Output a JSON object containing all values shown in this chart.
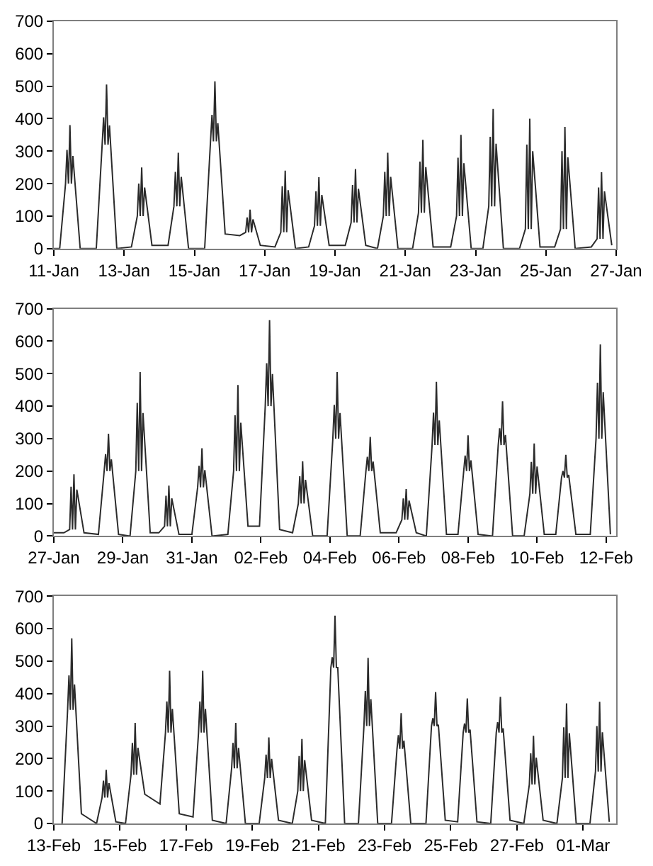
{
  "chart_data": [
    {
      "type": "line",
      "color": "#2b2b2b",
      "line_style": "solid",
      "marker": "none",
      "xlim": [
        "--01-11",
        "--01-27"
      ],
      "xticks": [
        {
          "value": "--01-11",
          "label": "11-Jan"
        },
        {
          "value": "--01-13",
          "label": "13-Jan"
        },
        {
          "value": "--01-15",
          "label": "15-Jan"
        },
        {
          "value": "--01-17",
          "label": "17-Jan"
        },
        {
          "value": "--01-19",
          "label": "19-Jan"
        },
        {
          "value": "--01-21",
          "label": "21-Jan"
        },
        {
          "value": "--01-23",
          "label": "23-Jan"
        },
        {
          "value": "--01-25",
          "label": "25-Jan"
        },
        {
          "value": "--01-27",
          "label": "27-Jan"
        }
      ],
      "ylim": [
        0,
        700
      ],
      "yticks": [
        0,
        100,
        200,
        300,
        400,
        500,
        600,
        700
      ],
      "x": [
        "--01-11T00:00",
        "--01-11T04:00",
        "--01-11T08:00",
        "--01-11T09:00",
        "--01-11T10:00",
        "--01-11T11:00",
        "--01-11T12:00",
        "--01-11T13:00",
        "--01-11T18:00",
        "--01-12T05:00",
        "--01-12T09:00",
        "--01-12T10:00",
        "--01-12T11:00",
        "--01-12T12:00",
        "--01-12T13:00",
        "--01-12T14:00",
        "--01-12T19:00",
        "--01-13T05:00",
        "--01-13T09:00",
        "--01-13T10:00",
        "--01-13T11:00",
        "--01-13T12:00",
        "--01-13T13:00",
        "--01-13T14:00",
        "--01-13T19:00",
        "--01-14T06:00",
        "--01-14T10:00",
        "--01-14T11:00",
        "--01-14T12:00",
        "--01-14T13:00",
        "--01-14T14:00",
        "--01-14T15:00",
        "--01-14T20:00",
        "--01-15T07:00",
        "--01-15T11:00",
        "--01-15T12:00",
        "--01-15T13:00",
        "--01-15T14:00",
        "--01-15T15:00",
        "--01-15T16:00",
        "--01-15T21:00",
        "--01-16T07:00",
        "--01-16T11:00",
        "--01-16T12:00",
        "--01-16T13:00",
        "--01-16T14:00",
        "--01-16T15:00",
        "--01-16T16:00",
        "--01-16T21:00",
        "--01-17T07:00",
        "--01-17T11:00",
        "--01-17T12:00",
        "--01-17T13:00",
        "--01-17T14:00",
        "--01-17T15:00",
        "--01-17T16:00",
        "--01-17T21:00",
        "--01-18T06:00",
        "--01-18T10:00",
        "--01-18T11:00",
        "--01-18T12:00",
        "--01-18T13:00",
        "--01-18T14:00",
        "--01-18T15:00",
        "--01-18T20:00",
        "--01-19T07:00",
        "--01-19T11:00",
        "--01-19T12:00",
        "--01-19T13:00",
        "--01-19T14:00",
        "--01-19T15:00",
        "--01-19T16:00",
        "--01-19T21:00",
        "--01-20T05:00",
        "--01-20T09:00",
        "--01-20T10:00",
        "--01-20T11:00",
        "--01-20T12:00",
        "--01-20T13:00",
        "--01-20T14:00",
        "--01-20T19:00",
        "--01-21T05:00",
        "--01-21T09:00",
        "--01-21T10:00",
        "--01-21T11:00",
        "--01-21T12:00",
        "--01-21T13:00",
        "--01-21T14:00",
        "--01-21T19:00",
        "--01-22T07:00",
        "--01-22T11:00",
        "--01-22T12:00",
        "--01-22T13:00",
        "--01-22T14:00",
        "--01-22T15:00",
        "--01-22T16:00",
        "--01-22T21:00",
        "--01-23T05:00",
        "--01-23T09:00",
        "--01-23T10:00",
        "--01-23T11:00",
        "--01-23T12:00",
        "--01-23T13:00",
        "--01-23T14:00",
        "--01-23T19:00",
        "--01-24T06:00",
        "--01-24T10:00",
        "--01-24T11:00",
        "--01-24T12:00",
        "--01-24T13:00",
        "--01-24T14:00",
        "--01-24T15:00",
        "--01-24T20:00",
        "--01-25T06:00",
        "--01-25T10:00",
        "--01-25T11:00",
        "--01-25T12:00",
        "--01-25T13:00",
        "--01-25T14:00",
        "--01-25T15:00",
        "--01-25T20:00",
        "--01-26T07:00",
        "--01-26T11:00",
        "--01-26T12:00",
        "--01-26T13:00",
        "--01-26T14:00",
        "--01-26T15:00",
        "--01-26T16:00",
        "--01-26T21:00"
      ],
      "values": [
        0,
        0,
        200,
        304,
        200,
        380,
        200,
        285,
        0,
        0,
        320,
        404,
        320,
        505,
        320,
        379,
        0,
        5,
        100,
        200,
        100,
        250,
        100,
        188,
        10,
        10,
        130,
        236,
        130,
        295,
        130,
        221,
        0,
        0,
        330,
        412,
        330,
        515,
        330,
        386,
        45,
        40,
        50,
        96,
        50,
        120,
        50,
        90,
        10,
        5,
        50,
        192,
        50,
        240,
        50,
        180,
        0,
        5,
        70,
        176,
        70,
        220,
        70,
        165,
        10,
        10,
        80,
        196,
        80,
        245,
        80,
        184,
        10,
        0,
        100,
        236,
        100,
        295,
        100,
        221,
        0,
        0,
        110,
        268,
        110,
        335,
        110,
        251,
        5,
        5,
        100,
        280,
        100,
        350,
        100,
        263,
        0,
        0,
        130,
        344,
        130,
        430,
        130,
        323,
        0,
        0,
        60,
        320,
        60,
        400,
        60,
        300,
        5,
        5,
        60,
        300,
        60,
        375,
        60,
        281,
        0,
        5,
        30,
        188,
        30,
        235,
        30,
        176,
        10
      ]
    },
    {
      "type": "line",
      "color": "#2b2b2b",
      "line_style": "solid",
      "marker": "none",
      "xlim": [
        "--01-27",
        "--02-12T07:00"
      ],
      "xticks": [
        {
          "value": "--01-27",
          "label": "27-Jan"
        },
        {
          "value": "--01-29",
          "label": "29-Jan"
        },
        {
          "value": "--01-31",
          "label": "31-Jan"
        },
        {
          "value": "--02-02",
          "label": "02-Feb"
        },
        {
          "value": "--02-04",
          "label": "04-Feb"
        },
        {
          "value": "--02-06",
          "label": "06-Feb"
        },
        {
          "value": "--02-08",
          "label": "08-Feb"
        },
        {
          "value": "--02-10",
          "label": "10-Feb"
        },
        {
          "value": "--02-12",
          "label": "12-Feb"
        }
      ],
      "ylim": [
        0,
        700
      ],
      "yticks": [
        0,
        100,
        200,
        300,
        400,
        500,
        600,
        700
      ],
      "x": [
        "--01-27T00:00",
        "--01-27T07:00",
        "--01-27T11:00",
        "--01-27T12:00",
        "--01-27T13:00",
        "--01-27T14:00",
        "--01-27T15:00",
        "--01-27T16:00",
        "--01-27T21:00",
        "--01-28T07:00",
        "--01-28T11:00",
        "--01-28T12:00",
        "--01-28T13:00",
        "--01-28T14:00",
        "--01-28T15:00",
        "--01-28T16:00",
        "--01-28T21:00",
        "--01-29T05:00",
        "--01-29T09:00",
        "--01-29T10:00",
        "--01-29T11:00",
        "--01-29T12:00",
        "--01-29T13:00",
        "--01-29T14:00",
        "--01-29T19:00",
        "--01-30T01:00",
        "--01-30T05:00",
        "--01-30T06:00",
        "--01-30T07:00",
        "--01-30T08:00",
        "--01-30T09:00",
        "--01-30T10:00",
        "--01-30T15:00",
        "--01-31T00:00",
        "--01-31T04:00",
        "--01-31T05:00",
        "--01-31T06:00",
        "--01-31T07:00",
        "--01-31T08:00",
        "--01-31T09:00",
        "--01-31T14:00",
        "--02-01T01:00",
        "--02-01T05:00",
        "--02-01T06:00",
        "--02-01T07:00",
        "--02-01T08:00",
        "--02-01T09:00",
        "--02-01T10:00",
        "--02-01T15:00",
        "--02-01T23:00",
        "--02-02T03:00",
        "--02-02T04:00",
        "--02-02T05:00",
        "--02-02T06:00",
        "--02-02T07:00",
        "--02-02T08:00",
        "--02-02T13:00",
        "--02-02T22:00",
        "--02-03T02:00",
        "--02-03T03:00",
        "--02-03T04:00",
        "--02-03T05:00",
        "--02-03T06:00",
        "--02-03T07:00",
        "--02-03T12:00",
        "--02-03T22:00",
        "--02-04T02:00",
        "--02-04T03:00",
        "--02-04T04:00",
        "--02-04T05:00",
        "--02-04T06:00",
        "--02-04T07:00",
        "--02-04T12:00",
        "--02-04T21:00",
        "--02-05T01:00",
        "--02-05T02:00",
        "--02-05T03:00",
        "--02-05T04:00",
        "--02-05T05:00",
        "--02-05T06:00",
        "--02-05T11:00",
        "--02-05T22:00",
        "--02-06T02:00",
        "--02-06T03:00",
        "--02-06T04:00",
        "--02-06T05:00",
        "--02-06T06:00",
        "--02-06T07:00",
        "--02-06T12:00",
        "--02-06T19:00",
        "--02-06T23:00",
        "--02-07T00:00",
        "--02-07T01:00",
        "--02-07T02:00",
        "--02-07T03:00",
        "--02-07T04:00",
        "--02-07T09:00",
        "--02-07T17:00",
        "--02-07T21:00",
        "--02-07T22:00",
        "--02-07T23:00",
        "--02-08T00:00",
        "--02-08T01:00",
        "--02-08T02:00",
        "--02-08T07:00",
        "--02-08T17:00",
        "--02-08T21:00",
        "--02-08T22:00",
        "--02-08T23:00",
        "--02-09T00:00",
        "--02-09T01:00",
        "--02-09T02:00",
        "--02-09T07:00",
        "--02-09T15:00",
        "--02-09T19:00",
        "--02-09T20:00",
        "--02-09T21:00",
        "--02-09T22:00",
        "--02-09T23:00",
        "--02-10T00:00",
        "--02-10T05:00",
        "--02-10T13:00",
        "--02-10T17:00",
        "--02-10T18:00",
        "--02-10T19:00",
        "--02-10T20:00",
        "--02-10T21:00",
        "--02-10T22:00",
        "--02-11T03:00",
        "--02-11T13:00",
        "--02-11T17:00",
        "--02-11T18:00",
        "--02-11T19:00",
        "--02-11T20:00",
        "--02-11T21:00",
        "--02-11T22:00",
        "--02-12T03:00"
      ],
      "values": [
        10,
        10,
        20,
        152,
        20,
        190,
        20,
        143,
        10,
        5,
        200,
        252,
        200,
        315,
        200,
        236,
        5,
        0,
        200,
        410,
        200,
        505,
        200,
        379,
        10,
        10,
        30,
        124,
        30,
        155,
        30,
        116,
        5,
        5,
        150,
        216,
        150,
        270,
        150,
        203,
        0,
        5,
        200,
        372,
        200,
        465,
        200,
        349,
        30,
        30,
        400,
        532,
        400,
        665,
        400,
        499,
        20,
        10,
        100,
        184,
        100,
        230,
        100,
        173,
        0,
        0,
        300,
        404,
        300,
        505,
        300,
        379,
        0,
        0,
        200,
        244,
        200,
        305,
        200,
        229,
        10,
        10,
        50,
        116,
        50,
        145,
        50,
        109,
        10,
        0,
        280,
        380,
        280,
        475,
        280,
        356,
        5,
        5,
        200,
        248,
        200,
        310,
        200,
        233,
        5,
        0,
        280,
        332,
        280,
        415,
        280,
        311,
        0,
        0,
        130,
        228,
        130,
        285,
        130,
        214,
        5,
        5,
        180,
        200,
        180,
        250,
        180,
        188,
        5,
        5,
        300,
        472,
        300,
        590,
        300,
        443,
        5
      ]
    },
    {
      "type": "line",
      "color": "#2b2b2b",
      "line_style": "solid",
      "marker": "none",
      "xlim": [
        "--02-13",
        "--03-02"
      ],
      "xticks": [
        {
          "value": "--02-13",
          "label": "13-Feb"
        },
        {
          "value": "--02-15",
          "label": "15-Feb"
        },
        {
          "value": "--02-17",
          "label": "17-Feb"
        },
        {
          "value": "--02-19",
          "label": "19-Feb"
        },
        {
          "value": "--02-21",
          "label": "21-Feb"
        },
        {
          "value": "--02-23",
          "label": "23-Feb"
        },
        {
          "value": "--02-25",
          "label": "25-Feb"
        },
        {
          "value": "--02-27",
          "label": "27-Feb"
        },
        {
          "value": "--03-01",
          "label": "01-Mar"
        }
      ],
      "ylim": [
        0,
        700
      ],
      "yticks": [
        0,
        100,
        200,
        300,
        400,
        500,
        600,
        700
      ],
      "x": [
        "--02-13T06:00",
        "--02-13T10:00",
        "--02-13T11:00",
        "--02-13T12:00",
        "--02-13T13:00",
        "--02-13T14:00",
        "--02-13T15:00",
        "--02-13T20:00",
        "--02-14T07:00",
        "--02-14T11:00",
        "--02-14T12:00",
        "--02-14T13:00",
        "--02-14T14:00",
        "--02-14T15:00",
        "--02-14T16:00",
        "--02-14T21:00",
        "--02-15T04:00",
        "--02-15T08:00",
        "--02-15T09:00",
        "--02-15T10:00",
        "--02-15T11:00",
        "--02-15T12:00",
        "--02-15T13:00",
        "--02-15T18:00",
        "--02-16T05:00",
        "--02-16T09:00",
        "--02-16T10:00",
        "--02-16T11:00",
        "--02-16T12:00",
        "--02-16T13:00",
        "--02-16T14:00",
        "--02-16T19:00",
        "--02-17T05:00",
        "--02-17T09:00",
        "--02-17T10:00",
        "--02-17T11:00",
        "--02-17T12:00",
        "--02-17T13:00",
        "--02-17T14:00",
        "--02-17T19:00",
        "--02-18T05:00",
        "--02-18T09:00",
        "--02-18T10:00",
        "--02-18T11:00",
        "--02-18T12:00",
        "--02-18T13:00",
        "--02-18T14:00",
        "--02-18T19:00",
        "--02-19T05:00",
        "--02-19T09:00",
        "--02-19T10:00",
        "--02-19T11:00",
        "--02-19T12:00",
        "--02-19T13:00",
        "--02-19T14:00",
        "--02-19T19:00",
        "--02-20T05:00",
        "--02-20T09:00",
        "--02-20T10:00",
        "--02-20T11:00",
        "--02-20T12:00",
        "--02-20T13:00",
        "--02-20T14:00",
        "--02-20T19:00",
        "--02-21T05:00",
        "--02-21T09:00",
        "--02-21T10:00",
        "--02-21T11:00",
        "--02-21T12:00",
        "--02-21T13:00",
        "--02-21T14:00",
        "--02-21T19:00",
        "--02-22T05:00",
        "--02-22T09:00",
        "--02-22T10:00",
        "--02-22T11:00",
        "--02-22T12:00",
        "--02-22T13:00",
        "--02-22T14:00",
        "--02-22T19:00",
        "--02-23T05:00",
        "--02-23T09:00",
        "--02-23T10:00",
        "--02-23T11:00",
        "--02-23T12:00",
        "--02-23T13:00",
        "--02-23T14:00",
        "--02-23T19:00",
        "--02-24T06:00",
        "--02-24T10:00",
        "--02-24T11:00",
        "--02-24T12:00",
        "--02-24T13:00",
        "--02-24T14:00",
        "--02-24T15:00",
        "--02-24T20:00",
        "--02-25T05:00",
        "--02-25T09:00",
        "--02-25T10:00",
        "--02-25T11:00",
        "--02-25T12:00",
        "--02-25T13:00",
        "--02-25T14:00",
        "--02-25T19:00",
        "--02-26T05:00",
        "--02-26T09:00",
        "--02-26T10:00",
        "--02-26T11:00",
        "--02-26T12:00",
        "--02-26T13:00",
        "--02-26T14:00",
        "--02-26T19:00",
        "--02-27T05:00",
        "--02-27T09:00",
        "--02-27T10:00",
        "--02-27T11:00",
        "--02-27T12:00",
        "--02-27T13:00",
        "--02-27T14:00",
        "--02-27T19:00",
        "--02-28T05:00",
        "--02-28T09:00",
        "--02-28T10:00",
        "--02-28T11:00",
        "--02-28T12:00",
        "--02-28T13:00",
        "--02-28T14:00",
        "--02-28T19:00",
        "--03-01T05:00",
        "--03-01T09:00",
        "--03-01T10:00",
        "--03-01T11:00",
        "--03-01T12:00",
        "--03-01T13:00",
        "--03-01T14:00",
        "--03-01T19:00"
      ],
      "values": [
        0,
        350,
        456,
        350,
        570,
        350,
        428,
        30,
        0,
        80,
        132,
        80,
        165,
        80,
        124,
        5,
        0,
        150,
        248,
        150,
        310,
        150,
        233,
        90,
        60,
        280,
        376,
        280,
        470,
        280,
        353,
        30,
        20,
        280,
        376,
        280,
        470,
        280,
        353,
        10,
        0,
        170,
        248,
        170,
        310,
        170,
        233,
        0,
        0,
        140,
        212,
        140,
        265,
        140,
        199,
        10,
        0,
        100,
        208,
        100,
        260,
        100,
        195,
        10,
        0,
        480,
        512,
        480,
        640,
        480,
        480,
        0,
        0,
        300,
        408,
        300,
        510,
        300,
        383,
        0,
        0,
        230,
        272,
        230,
        340,
        230,
        255,
        0,
        0,
        300,
        324,
        300,
        405,
        300,
        304,
        10,
        5,
        280,
        308,
        280,
        385,
        280,
        289,
        5,
        0,
        280,
        312,
        280,
        390,
        280,
        293,
        10,
        0,
        120,
        216,
        120,
        270,
        120,
        203,
        10,
        0,
        140,
        296,
        140,
        370,
        140,
        278,
        0,
        0,
        160,
        300,
        160,
        375,
        160,
        281,
        5
      ]
    }
  ]
}
